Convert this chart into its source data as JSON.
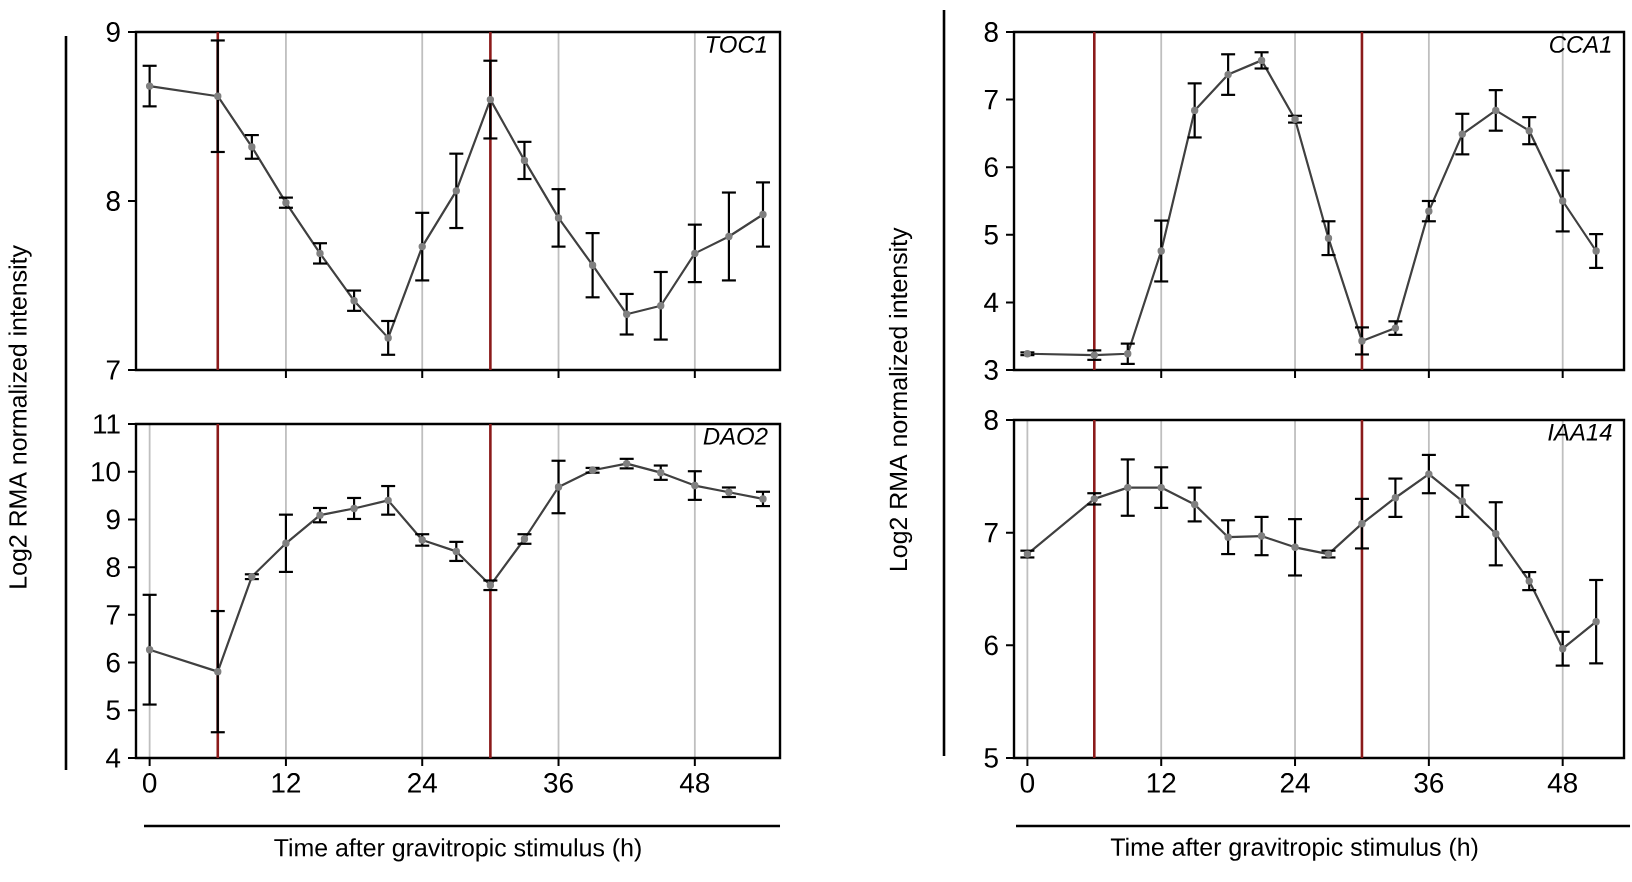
{
  "chart_data": [
    {
      "type": "line",
      "title": "TOC1",
      "x": [
        0,
        6,
        9,
        12,
        15,
        18,
        21,
        24,
        27,
        30,
        33,
        36,
        39,
        42,
        45,
        48,
        51,
        54
      ],
      "values": [
        8.68,
        8.62,
        8.32,
        7.99,
        7.69,
        7.41,
        7.19,
        7.73,
        8.06,
        8.6,
        8.24,
        7.9,
        7.62,
        7.33,
        7.38,
        7.69,
        7.79,
        7.92
      ],
      "errors": [
        0.12,
        0.33,
        0.07,
        0.03,
        0.06,
        0.06,
        0.1,
        0.2,
        0.22,
        0.23,
        0.11,
        0.17,
        0.19,
        0.12,
        0.2,
        0.17,
        0.26,
        0.19
      ],
      "color": "#404040",
      "marker": "circle",
      "xlim": [
        -1.2,
        55.5
      ],
      "ylim": [
        7,
        9
      ],
      "xticks": [
        {
          "value": 12,
          "label": null
        },
        {
          "value": 24,
          "label": null
        },
        {
          "value": 36,
          "label": null
        },
        {
          "value": 48,
          "label": null
        }
      ],
      "yticks": [
        7,
        8,
        9
      ],
      "tick_labels": "y",
      "grid": "x",
      "ref_lines": [
        {
          "axis": "x",
          "value": 6,
          "color": "#8b1a1a"
        },
        {
          "axis": "x",
          "value": 30,
          "color": "#8b1a1a"
        }
      ]
    },
    {
      "type": "line",
      "title": "DAO2",
      "xlabel": "Time after gravitropic stimulus (h)",
      "ylabel": "Log2 RMA normalized intensity",
      "x": [
        0,
        6,
        9,
        12,
        15,
        18,
        21,
        24,
        27,
        30,
        33,
        36,
        39,
        42,
        45,
        48,
        51,
        54
      ],
      "values": [
        6.27,
        5.81,
        7.8,
        8.5,
        9.09,
        9.23,
        9.4,
        8.57,
        8.33,
        7.62,
        8.59,
        9.68,
        10.03,
        10.17,
        9.98,
        9.71,
        9.57,
        9.43
      ],
      "errors": [
        1.15,
        1.27,
        0.05,
        0.6,
        0.15,
        0.22,
        0.3,
        0.12,
        0.2,
        0.1,
        0.1,
        0.55,
        0.05,
        0.1,
        0.15,
        0.3,
        0.1,
        0.15
      ],
      "color": "#404040",
      "marker": "circle",
      "xlim": [
        -1.2,
        55.5
      ],
      "ylim": [
        4,
        11
      ],
      "xticks": [
        0,
        12,
        24,
        36,
        48
      ],
      "yticks": [
        4,
        5,
        6,
        7,
        8,
        9,
        10,
        11
      ],
      "grid": "x",
      "ref_lines": [
        {
          "axis": "x",
          "value": 6,
          "color": "#8b1a1a"
        },
        {
          "axis": "x",
          "value": 30,
          "color": "#8b1a1a"
        }
      ]
    },
    {
      "type": "line",
      "title": "CCA1",
      "x": [
        0,
        6,
        9,
        12,
        15,
        18,
        21,
        24,
        27,
        30,
        33,
        36,
        39,
        42,
        45,
        48,
        51
      ],
      "values": [
        3.24,
        3.22,
        3.24,
        4.76,
        6.84,
        7.37,
        7.58,
        6.71,
        4.95,
        3.43,
        3.62,
        5.35,
        6.49,
        6.84,
        6.54,
        5.5,
        4.76
      ],
      "errors": [
        0.02,
        0.07,
        0.15,
        0.45,
        0.4,
        0.3,
        0.12,
        0.05,
        0.25,
        0.2,
        0.1,
        0.15,
        0.3,
        0.3,
        0.2,
        0.45,
        0.25
      ],
      "color": "#404040",
      "marker": "circle",
      "xlim": [
        -1.2,
        53.5
      ],
      "ylim": [
        3,
        8
      ],
      "xticks": [
        {
          "value": 12,
          "label": null
        },
        {
          "value": 24,
          "label": null
        },
        {
          "value": 36,
          "label": null
        },
        {
          "value": 48,
          "label": null
        }
      ],
      "yticks": [
        3,
        4,
        5,
        6,
        7,
        8
      ],
      "tick_labels": "y",
      "grid": "x",
      "ref_lines": [
        {
          "axis": "x",
          "value": 6,
          "color": "#8b1a1a"
        },
        {
          "axis": "x",
          "value": 30,
          "color": "#8b1a1a"
        }
      ]
    },
    {
      "type": "line",
      "title": "IAA14",
      "xlabel": "Time after gravitropic stimulus (h)",
      "ylabel": "Log2 RMA normalized intensity",
      "x": [
        0,
        6,
        9,
        12,
        15,
        18,
        21,
        24,
        27,
        30,
        33,
        36,
        39,
        42,
        45,
        48,
        51
      ],
      "values": [
        6.81,
        7.3,
        7.4,
        7.4,
        7.25,
        6.96,
        6.97,
        6.87,
        6.81,
        7.08,
        7.31,
        7.52,
        7.28,
        6.99,
        6.57,
        5.97,
        6.21
      ],
      "errors": [
        0.03,
        0.05,
        0.25,
        0.18,
        0.15,
        0.15,
        0.17,
        0.25,
        0.03,
        0.22,
        0.17,
        0.17,
        0.14,
        0.28,
        0.08,
        0.15,
        0.37
      ],
      "color": "#404040",
      "marker": "circle",
      "xlim": [
        -1.2,
        53.5
      ],
      "ylim": [
        5,
        8
      ],
      "xticks": [
        0,
        12,
        24,
        36,
        48
      ],
      "yticks": [
        5,
        6,
        7,
        8
      ],
      "grid": "x",
      "ref_lines": [
        {
          "axis": "x",
          "value": 6,
          "color": "#8b1a1a"
        },
        {
          "axis": "x",
          "value": 30,
          "color": "#8b1a1a"
        }
      ]
    }
  ]
}
